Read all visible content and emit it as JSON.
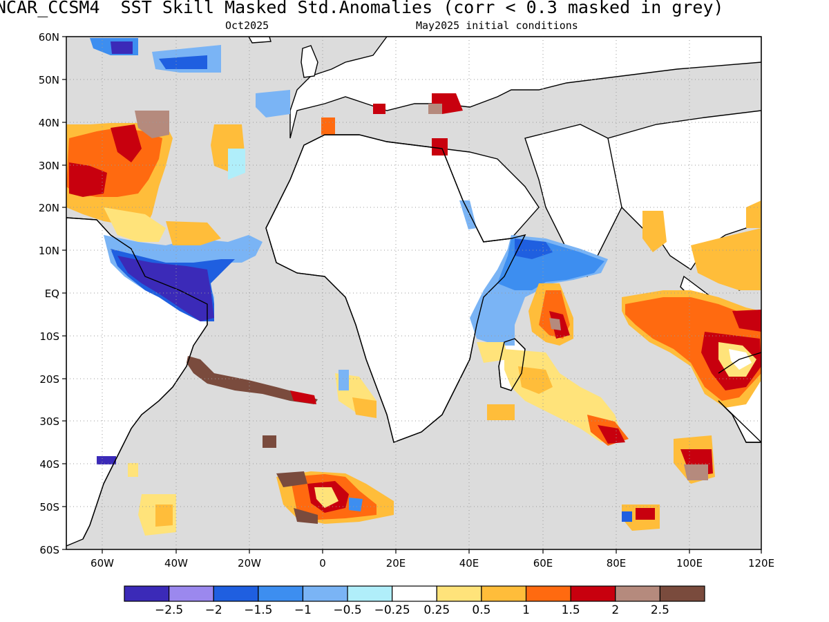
{
  "title": "NCAR_CCSM4  SST Skill Masked Std.Anomalies (corr < 0.3 masked in grey)",
  "subtitle_left": "Oct2025",
  "subtitle_right": "May2025 initial conditions",
  "lat_labels": [
    "60N",
    "50N",
    "40N",
    "30N",
    "20N",
    "10N",
    "EQ",
    "10S",
    "20S",
    "30S",
    "40S",
    "50S",
    "60S"
  ],
  "lon_labels": [
    "60W",
    "40W",
    "20W",
    "0",
    "20E",
    "40E",
    "60E",
    "80E",
    "100E",
    "120E"
  ],
  "colorbar": {
    "colors": [
      "#3b2ab8",
      "#9b88ee",
      "#1f5fe0",
      "#3d8ef0",
      "#7ab4f5",
      "#b0eefa",
      "#ffffff",
      "#ffe37a",
      "#ffbd3a",
      "#ff6a10",
      "#c8000e",
      "#b58a7d",
      "#7a4b3d"
    ],
    "labels": [
      "−2.5",
      "−2",
      "−1.5",
      "−1",
      "−0.5",
      "−0.25",
      "0.25",
      "0.5",
      "1",
      "1.5",
      "2",
      "2.5"
    ]
  },
  "mask_color": "#dcdcdc"
}
